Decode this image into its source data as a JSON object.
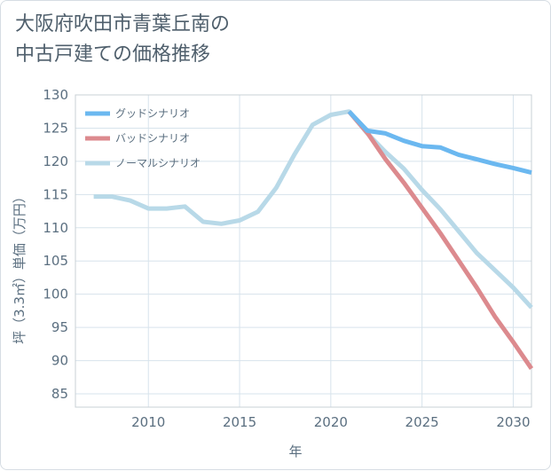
{
  "title": "大阪府吹田市青葉丘南の\n中古戸建ての価格推移",
  "chart_data": {
    "type": "line",
    "xlabel": "年",
    "ylabel": "坪（3.3㎡）単価（万円）",
    "xlim": [
      2006,
      2031
    ],
    "ylim": [
      83,
      130
    ],
    "xticks": [
      2010,
      2015,
      2020,
      2025,
      2030
    ],
    "yticks": [
      85,
      90,
      95,
      100,
      105,
      110,
      115,
      120,
      125,
      130
    ],
    "grid": true,
    "legend_position": "top-left",
    "series": [
      {
        "name": "グッドシナリオ",
        "color": "#6bb8f0",
        "x": [
          2021,
          2022,
          2023,
          2024,
          2025,
          2026,
          2027,
          2028,
          2029,
          2030,
          2031
        ],
        "y": [
          127.5,
          124.6,
          124.2,
          123.1,
          122.3,
          122.1,
          121.0,
          120.3,
          119.6,
          119.0,
          118.3
        ]
      },
      {
        "name": "バッドシナリオ",
        "color": "#dc8a8e",
        "x": [
          2021,
          2022,
          2023,
          2024,
          2025,
          2026,
          2027,
          2028,
          2029,
          2030,
          2031
        ],
        "y": [
          127.5,
          124.3,
          120.3,
          116.8,
          113.0,
          109.2,
          105.1,
          101.0,
          96.6,
          92.8,
          88.8
        ]
      },
      {
        "name": "ノーマルシナリオ",
        "color": "#b8d9e8",
        "x": [
          2007,
          2008,
          2009,
          2010,
          2011,
          2012,
          2013,
          2014,
          2015,
          2016,
          2017,
          2018,
          2019,
          2020,
          2021,
          2022,
          2023,
          2024,
          2025,
          2026,
          2027,
          2028,
          2029,
          2030,
          2031
        ],
        "y": [
          114.7,
          114.7,
          114.1,
          112.9,
          112.9,
          113.2,
          110.9,
          110.6,
          111.1,
          112.4,
          116.0,
          121.0,
          125.5,
          127.0,
          127.5,
          124.2,
          121.4,
          118.9,
          115.7,
          112.8,
          109.5,
          106.2,
          103.6,
          101.0,
          98.0
        ]
      }
    ]
  }
}
